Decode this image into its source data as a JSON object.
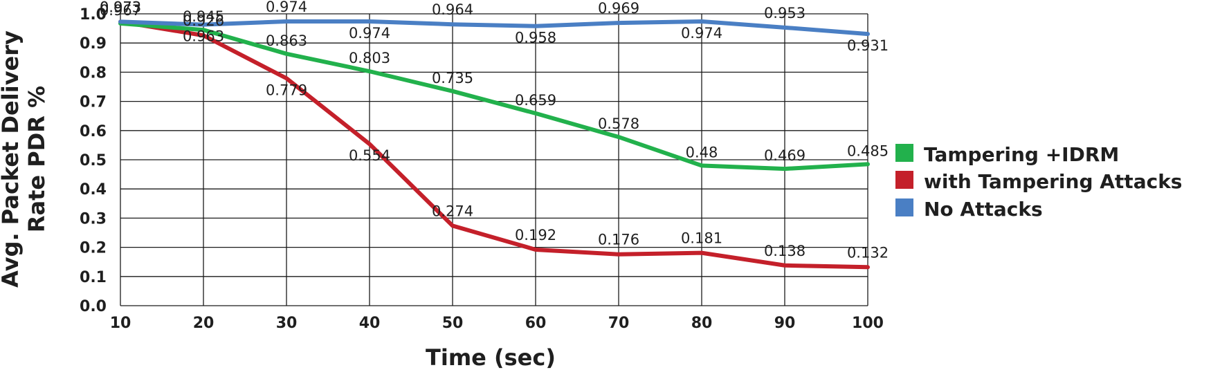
{
  "chart_data": {
    "type": "line",
    "title": "",
    "xlabel": "Time (sec)",
    "ylabel": "Avg. Packet Delivery Rate PDR %",
    "ylabel_lines": [
      "Avg. Packet Delivery",
      "Rate PDR %"
    ],
    "x": [
      10,
      20,
      30,
      40,
      50,
      60,
      70,
      80,
      90,
      100
    ],
    "x_tick_labels": [
      "10",
      "20",
      "30",
      "40",
      "50",
      "60",
      "70",
      "80",
      "90",
      "100"
    ],
    "xlim": [
      10,
      100
    ],
    "y_tick_labels": [
      "0.0",
      "0.1",
      "0.2",
      "0.3",
      "0.4",
      "0.5",
      "0.6",
      "0.7",
      "0.8",
      "0.9",
      "1.0"
    ],
    "ylim": [
      0,
      1.0
    ],
    "grid": true,
    "legend_position": "right",
    "series": [
      {
        "name": "Tampering +IDRM",
        "color": "#22b14c",
        "values": [
          0.967,
          0.945,
          0.863,
          0.803,
          0.735,
          0.659,
          0.578,
          0.48,
          0.469,
          0.485
        ],
        "labels": [
          "0.967",
          "0.945",
          "0.863",
          "0.803",
          "0.735",
          "0.659",
          "0.578",
          "0.48",
          "0.469",
          "0.485"
        ]
      },
      {
        "name": "with Tampering Attacks",
        "color": "#c4202a",
        "values": [
          0.973,
          0.926,
          0.779,
          0.554,
          0.274,
          0.192,
          0.176,
          0.181,
          0.138,
          0.132
        ],
        "labels": [
          "0.973",
          "0.926",
          "0.779",
          "0.554",
          "0.274",
          "0.192",
          "0.176",
          "0.181",
          "0.138",
          "0.132"
        ]
      },
      {
        "name": "No Attacks",
        "color": "#4a7fc4",
        "values": [
          0.973,
          0.963,
          0.974,
          0.974,
          0.964,
          0.958,
          0.969,
          0.974,
          0.953,
          0.931
        ],
        "labels": [
          "0.973",
          "0.963",
          "0.974",
          "0.974",
          "0.964",
          "0.958",
          "0.969",
          "0.974",
          "0.953",
          "0.931"
        ]
      }
    ]
  }
}
